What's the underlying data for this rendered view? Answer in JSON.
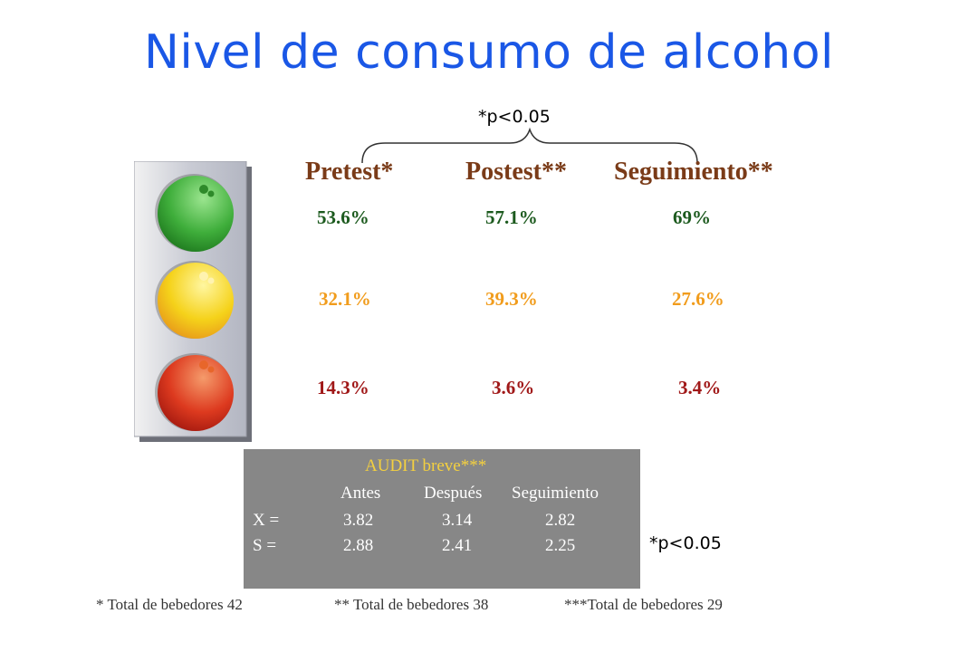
{
  "title": "Nivel de consumo de alcohol",
  "p_note_top": "*p<0.05",
  "p_note_bottom": "*p<0.05",
  "headers": [
    "Pretest*",
    "Postest**",
    "Seguimiento**"
  ],
  "rows": {
    "green": [
      "53.6%",
      "57.1%",
      "69%"
    ],
    "yellow": [
      "32.1%",
      "39.3%",
      "27.6%"
    ],
    "red": [
      "14.3%",
      "3.6%",
      "3.4%"
    ]
  },
  "audit": {
    "title": "AUDIT breve***",
    "columns": [
      "Antes",
      "Después",
      "Seguimiento"
    ],
    "x_label": "X =",
    "x_values": [
      "3.82",
      "3.14",
      "2.82"
    ],
    "s_label": "S =",
    "s_values": [
      "2.88",
      "2.41",
      "2.25"
    ]
  },
  "footnotes": [
    "* Total de bebedores 42",
    "** Total de bebedores 38",
    "***Total de bebedores 29"
  ],
  "colors": {
    "title": "#1a57e6",
    "header": "#7a3b18",
    "green_row": "#1c5a1e",
    "yellow_row": "#f19c1c",
    "red_row": "#a01818",
    "audit_bg": "#878787",
    "audit_title": "#f4d03f"
  },
  "icons": [
    "traffic-light-icon"
  ]
}
